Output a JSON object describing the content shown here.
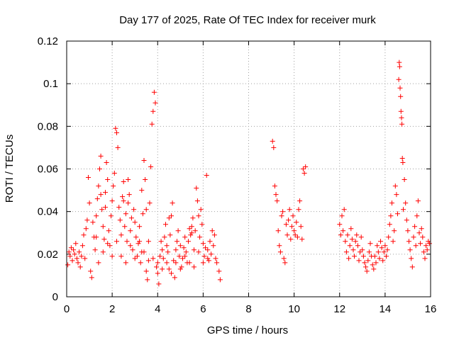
{
  "chart_data": {
    "type": "scatter",
    "title": "Day 177 of 2025, Rate Of TEC Index for receiver murk",
    "xlabel": "GPS time / hours",
    "ylabel": "ROTI / TECUs",
    "xlim": [
      0,
      16
    ],
    "ylim": [
      0,
      0.12
    ],
    "xticks": [
      0,
      2,
      4,
      6,
      8,
      10,
      12,
      14,
      16
    ],
    "yticks": [
      0,
      0.02,
      0.04,
      0.06,
      0.08,
      0.1,
      0.12
    ],
    "xtick_labels": [
      "0",
      "2",
      "4",
      "6",
      "8",
      "10",
      "12",
      "14",
      "16"
    ],
    "ytick_labels": [
      "0",
      "0.02",
      "0.04",
      "0.06",
      "0.08",
      "0.1",
      "0.12"
    ],
    "grid": true,
    "marker": "+",
    "color": "#ff0000",
    "series": [
      {
        "name": "ROTI",
        "points": [
          [
            0.05,
            0.015
          ],
          [
            0.1,
            0.021
          ],
          [
            0.15,
            0.019
          ],
          [
            0.2,
            0.023
          ],
          [
            0.25,
            0.017
          ],
          [
            0.3,
            0.022
          ],
          [
            0.35,
            0.02
          ],
          [
            0.4,
            0.025
          ],
          [
            0.45,
            0.018
          ],
          [
            0.5,
            0.016
          ],
          [
            0.55,
            0.021
          ],
          [
            0.6,
            0.014
          ],
          [
            0.65,
            0.019
          ],
          [
            0.7,
            0.024
          ],
          [
            0.75,
            0.029
          ],
          [
            0.8,
            0.018
          ],
          [
            0.85,
            0.032
          ],
          [
            0.9,
            0.036
          ],
          [
            0.95,
            0.056
          ],
          [
            1.0,
            0.044
          ],
          [
            1.05,
            0.012
          ],
          [
            1.1,
            0.009
          ],
          [
            1.15,
            0.035
          ],
          [
            1.2,
            0.028
          ],
          [
            1.25,
            0.022
          ],
          [
            1.3,
            0.038
          ],
          [
            1.35,
            0.046
          ],
          [
            1.4,
            0.052
          ],
          [
            1.45,
            0.06
          ],
          [
            1.5,
            0.066
          ],
          [
            1.55,
            0.041
          ],
          [
            1.6,
            0.033
          ],
          [
            1.65,
            0.027
          ],
          [
            1.7,
            0.049
          ],
          [
            1.75,
            0.063
          ],
          [
            1.8,
            0.055
          ],
          [
            1.85,
            0.031
          ],
          [
            1.9,
            0.024
          ],
          [
            1.95,
            0.038
          ],
          [
            2.0,
            0.045
          ],
          [
            2.05,
            0.052
          ],
          [
            2.1,
            0.058
          ],
          [
            2.15,
            0.079
          ],
          [
            2.2,
            0.077
          ],
          [
            2.25,
            0.07
          ],
          [
            2.3,
            0.042
          ],
          [
            2.35,
            0.036
          ],
          [
            2.4,
            0.029
          ],
          [
            2.45,
            0.047
          ],
          [
            2.5,
            0.054
          ],
          [
            2.55,
            0.033
          ],
          [
            2.6,
            0.039
          ],
          [
            2.65,
            0.026
          ],
          [
            2.7,
            0.044
          ],
          [
            2.75,
            0.048
          ],
          [
            2.8,
            0.031
          ],
          [
            2.85,
            0.037
          ],
          [
            2.9,
            0.022
          ],
          [
            2.95,
            0.041
          ],
          [
            3.0,
            0.035
          ],
          [
            3.05,
            0.028
          ],
          [
            3.1,
            0.019
          ],
          [
            3.15,
            0.025
          ],
          [
            3.2,
            0.033
          ],
          [
            3.25,
            0.016
          ],
          [
            3.3,
            0.021
          ],
          [
            3.35,
            0.039
          ],
          [
            3.4,
            0.064
          ],
          [
            3.45,
            0.055
          ],
          [
            3.5,
            0.012
          ],
          [
            3.55,
            0.008
          ],
          [
            3.6,
            0.017
          ],
          [
            3.65,
            0.044
          ],
          [
            3.7,
            0.061
          ],
          [
            3.75,
            0.081
          ],
          [
            3.8,
            0.087
          ],
          [
            3.85,
            0.096
          ],
          [
            3.9,
            0.091
          ],
          [
            3.95,
            0.014
          ],
          [
            4.0,
            0.011
          ],
          [
            4.05,
            0.006
          ],
          [
            4.1,
            0.019
          ],
          [
            4.15,
            0.026
          ],
          [
            4.2,
            0.022
          ],
          [
            4.25,
            0.018
          ],
          [
            4.3,
            0.028
          ],
          [
            4.35,
            0.034
          ],
          [
            4.4,
            0.016
          ],
          [
            4.45,
            0.021
          ],
          [
            4.5,
            0.013
          ],
          [
            4.55,
            0.029
          ],
          [
            4.6,
            0.038
          ],
          [
            4.65,
            0.044
          ],
          [
            4.7,
            0.017
          ],
          [
            4.75,
            0.009
          ],
          [
            4.8,
            0.022
          ],
          [
            4.85,
            0.026
          ],
          [
            4.9,
            0.031
          ],
          [
            4.95,
            0.019
          ],
          [
            5.0,
            0.024
          ],
          [
            5.05,
            0.014
          ],
          [
            5.1,
            0.018
          ],
          [
            5.15,
            0.023
          ],
          [
            5.2,
            0.028
          ],
          [
            5.25,
            0.021
          ],
          [
            5.3,
            0.016
          ],
          [
            5.35,
            0.026
          ],
          [
            5.4,
            0.032
          ],
          [
            5.45,
            0.029
          ],
          [
            5.5,
            0.033
          ],
          [
            5.55,
            0.037
          ],
          [
            5.6,
            0.022
          ],
          [
            5.65,
            0.031
          ],
          [
            5.7,
            0.051
          ],
          [
            5.75,
            0.045
          ],
          [
            5.8,
            0.038
          ],
          [
            5.85,
            0.028
          ],
          [
            5.9,
            0.041
          ],
          [
            5.95,
            0.034
          ],
          [
            6.0,
            0.025
          ],
          [
            6.05,
            0.019
          ],
          [
            6.1,
            0.023
          ],
          [
            6.15,
            0.057
          ],
          [
            6.2,
            0.022
          ],
          [
            6.25,
            0.017
          ],
          [
            6.3,
            0.026
          ],
          [
            6.35,
            0.02
          ],
          [
            6.4,
            0.031
          ],
          [
            6.45,
            0.024
          ],
          [
            6.5,
            0.029
          ],
          [
            6.55,
            0.018
          ],
          [
            6.6,
            0.016
          ],
          [
            6.7,
            0.012
          ],
          [
            6.75,
            0.008
          ],
          [
            1.3,
            0.028
          ],
          [
            1.4,
            0.016
          ],
          [
            1.6,
            0.021
          ],
          [
            1.8,
            0.025
          ],
          [
            2.0,
            0.019
          ],
          [
            2.2,
            0.026
          ],
          [
            2.4,
            0.019
          ],
          [
            2.6,
            0.016
          ],
          [
            2.8,
            0.024
          ],
          [
            3.0,
            0.018
          ],
          [
            3.2,
            0.026
          ],
          [
            3.4,
            0.021
          ],
          [
            3.6,
            0.026
          ],
          [
            3.8,
            0.018
          ],
          [
            4.0,
            0.016
          ],
          [
            4.2,
            0.013
          ],
          [
            4.4,
            0.024
          ],
          [
            4.6,
            0.011
          ],
          [
            4.8,
            0.016
          ],
          [
            5.0,
            0.013
          ],
          [
            5.2,
            0.019
          ],
          [
            5.4,
            0.016
          ],
          [
            5.6,
            0.014
          ],
          [
            5.8,
            0.021
          ],
          [
            6.0,
            0.016
          ],
          [
            6.2,
            0.018
          ],
          [
            1.5,
            0.048
          ],
          [
            2.5,
            0.045
          ],
          [
            3.5,
            0.041
          ],
          [
            4.5,
            0.037
          ],
          [
            5.5,
            0.03
          ],
          [
            3.3,
            0.05
          ],
          [
            2.7,
            0.055
          ],
          [
            1.7,
            0.042
          ],
          [
            9.05,
            0.073
          ],
          [
            9.1,
            0.07
          ],
          [
            9.15,
            0.052
          ],
          [
            9.2,
            0.048
          ],
          [
            9.25,
            0.045
          ],
          [
            9.3,
            0.031
          ],
          [
            9.35,
            0.024
          ],
          [
            9.4,
            0.021
          ],
          [
            9.45,
            0.038
          ],
          [
            9.5,
            0.04
          ],
          [
            9.55,
            0.018
          ],
          [
            9.6,
            0.016
          ],
          [
            9.65,
            0.034
          ],
          [
            9.7,
            0.029
          ],
          [
            9.75,
            0.036
          ],
          [
            9.8,
            0.041
          ],
          [
            9.85,
            0.027
          ],
          [
            9.9,
            0.033
          ],
          [
            9.95,
            0.038
          ],
          [
            10.0,
            0.031
          ],
          [
            10.05,
            0.029
          ],
          [
            10.1,
            0.035
          ],
          [
            10.15,
            0.028
          ],
          [
            10.2,
            0.041
          ],
          [
            10.25,
            0.045
          ],
          [
            10.3,
            0.033
          ],
          [
            10.35,
            0.027
          ],
          [
            10.4,
            0.06
          ],
          [
            10.45,
            0.058
          ],
          [
            10.5,
            0.061
          ],
          [
            12.0,
            0.034
          ],
          [
            12.05,
            0.029
          ],
          [
            12.1,
            0.038
          ],
          [
            12.15,
            0.031
          ],
          [
            12.2,
            0.041
          ],
          [
            12.25,
            0.026
          ],
          [
            12.3,
            0.021
          ],
          [
            12.35,
            0.029
          ],
          [
            12.4,
            0.018
          ],
          [
            12.45,
            0.024
          ],
          [
            12.5,
            0.032
          ],
          [
            12.55,
            0.027
          ],
          [
            12.6,
            0.022
          ],
          [
            12.65,
            0.019
          ],
          [
            12.7,
            0.026
          ],
          [
            12.75,
            0.029
          ],
          [
            12.8,
            0.024
          ],
          [
            12.85,
            0.017
          ],
          [
            12.9,
            0.021
          ],
          [
            12.95,
            0.028
          ],
          [
            13.0,
            0.022
          ],
          [
            13.05,
            0.019
          ],
          [
            13.1,
            0.016
          ],
          [
            13.15,
            0.014
          ],
          [
            13.2,
            0.012
          ],
          [
            13.25,
            0.017
          ],
          [
            13.3,
            0.021
          ],
          [
            13.35,
            0.025
          ],
          [
            13.4,
            0.019
          ],
          [
            13.45,
            0.015
          ],
          [
            13.5,
            0.013
          ],
          [
            13.55,
            0.019
          ],
          [
            13.6,
            0.016
          ],
          [
            13.65,
            0.024
          ],
          [
            13.7,
            0.021
          ],
          [
            13.75,
            0.018
          ],
          [
            13.8,
            0.026
          ],
          [
            13.85,
            0.023
          ],
          [
            13.9,
            0.017
          ],
          [
            13.95,
            0.021
          ],
          [
            14.0,
            0.024
          ],
          [
            14.05,
            0.019
          ],
          [
            14.1,
            0.022
          ],
          [
            14.15,
            0.028
          ],
          [
            14.2,
            0.034
          ],
          [
            14.25,
            0.038
          ],
          [
            14.3,
            0.044
          ],
          [
            14.35,
            0.026
          ],
          [
            14.4,
            0.031
          ],
          [
            14.45,
            0.052
          ],
          [
            14.5,
            0.048
          ],
          [
            14.55,
            0.039
          ],
          [
            14.6,
            0.102
          ],
          [
            14.62,
            0.11
          ],
          [
            14.64,
            0.108
          ],
          [
            14.66,
            0.098
          ],
          [
            14.68,
            0.094
          ],
          [
            14.7,
            0.087
          ],
          [
            14.72,
            0.084
          ],
          [
            14.74,
            0.081
          ],
          [
            14.76,
            0.065
          ],
          [
            14.78,
            0.063
          ],
          [
            14.8,
            0.041
          ],
          [
            14.85,
            0.055
          ],
          [
            14.9,
            0.044
          ],
          [
            14.95,
            0.036
          ],
          [
            15.0,
            0.031
          ],
          [
            15.05,
            0.026
          ],
          [
            15.1,
            0.022
          ],
          [
            15.15,
            0.018
          ],
          [
            15.2,
            0.014
          ],
          [
            15.25,
            0.028
          ],
          [
            15.3,
            0.033
          ],
          [
            15.35,
            0.024
          ],
          [
            15.4,
            0.038
          ],
          [
            15.45,
            0.045
          ],
          [
            15.5,
            0.03
          ],
          [
            15.55,
            0.025
          ],
          [
            15.6,
            0.032
          ],
          [
            15.65,
            0.028
          ],
          [
            15.7,
            0.021
          ],
          [
            15.75,
            0.018
          ],
          [
            15.8,
            0.024
          ],
          [
            15.85,
            0.022
          ],
          [
            15.9,
            0.026
          ],
          [
            15.95,
            0.025
          ]
        ]
      }
    ]
  }
}
